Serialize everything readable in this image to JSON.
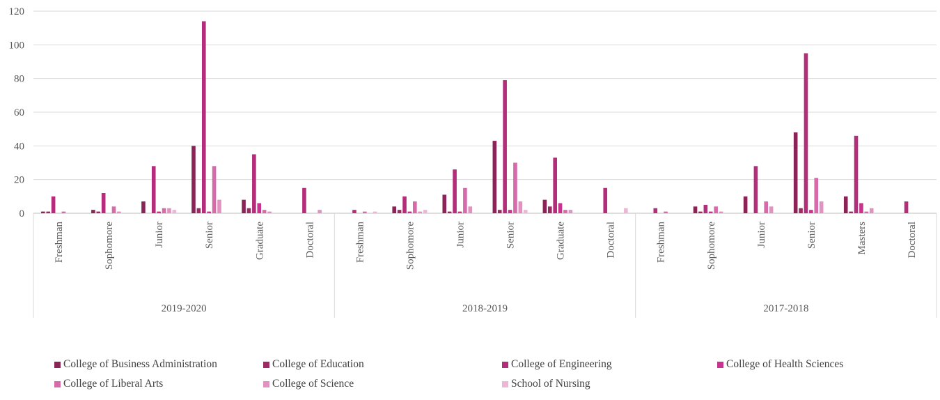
{
  "chart_data": {
    "type": "bar",
    "ylim": [
      0,
      120
    ],
    "yticks": [
      0,
      20,
      40,
      60,
      80,
      100,
      120
    ],
    "grid": true,
    "legend_position": "bottom",
    "groups": [
      {
        "label": "2019-2020",
        "categories": [
          "Freshman",
          "Sophomore",
          "Junior",
          "Senior",
          "Graduate",
          "Doctoral"
        ]
      },
      {
        "label": "2018-2019",
        "categories": [
          "Freshman",
          "Sophomore",
          "Junior",
          "Senior",
          "Graduate",
          "Doctoral"
        ]
      },
      {
        "label": "2017-2018",
        "categories": [
          "Freshman",
          "Sophomore",
          "Junior",
          "Senior",
          "Masters",
          "Doctoral"
        ]
      }
    ],
    "series": [
      {
        "name": "College of Business Administration",
        "color": "#8b2456",
        "values": [
          [
            1,
            2,
            7,
            40,
            8,
            0
          ],
          [
            0,
            4,
            11,
            43,
            8,
            0
          ],
          [
            0,
            4,
            10,
            48,
            10,
            0
          ]
        ]
      },
      {
        "name": "College of Education",
        "color": "#9e2a64",
        "values": [
          [
            1,
            1,
            0,
            3,
            3,
            0
          ],
          [
            0,
            2,
            1,
            2,
            4,
            0
          ],
          [
            0,
            1,
            0,
            3,
            1,
            0
          ]
        ]
      },
      {
        "name": "College of Engineering",
        "color": "#b42d7a",
        "values": [
          [
            10,
            12,
            28,
            114,
            35,
            15
          ],
          [
            2,
            10,
            26,
            79,
            33,
            15
          ],
          [
            3,
            5,
            28,
            95,
            46,
            7
          ]
        ]
      },
      {
        "name": "College of Health Sciences",
        "color": "#c8338f",
        "values": [
          [
            0,
            0,
            1,
            1,
            6,
            0
          ],
          [
            0,
            1,
            1,
            2,
            6,
            0
          ],
          [
            0,
            1,
            0,
            2,
            6,
            0
          ]
        ]
      },
      {
        "name": "College of Liberal Arts",
        "color": "#d76aa9",
        "values": [
          [
            1,
            4,
            3,
            28,
            2,
            0
          ],
          [
            1,
            7,
            15,
            30,
            2,
            0
          ],
          [
            1,
            4,
            7,
            21,
            1,
            0
          ]
        ]
      },
      {
        "name": "College of Science",
        "color": "#e391c1",
        "values": [
          [
            0,
            1,
            3,
            8,
            1,
            2
          ],
          [
            0,
            1,
            4,
            7,
            2,
            0
          ],
          [
            0,
            1,
            4,
            7,
            3,
            0
          ]
        ]
      },
      {
        "name": "School of Nursing",
        "color": "#eeb6d6",
        "values": [
          [
            0,
            0,
            2,
            0,
            0,
            0
          ],
          [
            1,
            2,
            0,
            2,
            0,
            3
          ],
          [
            0,
            0,
            0,
            0,
            0,
            0
          ]
        ]
      }
    ]
  }
}
